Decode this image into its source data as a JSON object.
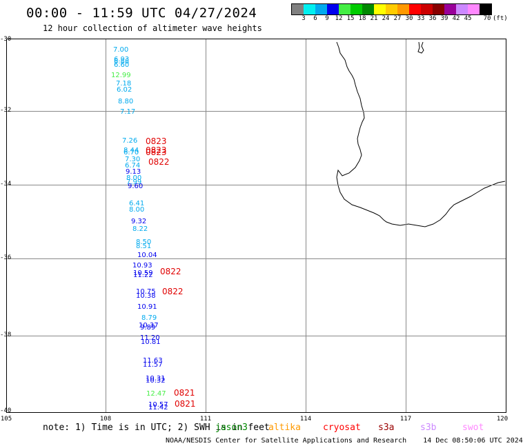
{
  "title": "00:00 - 11:59 UTC 04/27/2024",
  "subtitle": "12 hour collection of altimeter wave heights",
  "scale": {
    "colors": [
      "#808080",
      "#00f0f0",
      "#00aaee",
      "#0000ee",
      "#44ee44",
      "#00cc00",
      "#008800",
      "#ffff00",
      "#ffcc00",
      "#ff9900",
      "#ff0000",
      "#cc0000",
      "#880000",
      "#990099",
      "#cc88ff",
      "#ff88ff",
      "#000000"
    ],
    "ticks": [
      "3",
      "6",
      "9",
      "12",
      "15",
      "18",
      "21",
      "24",
      "27",
      "30",
      "33",
      "36",
      "39",
      "42",
      "45",
      "70"
    ],
    "unit": "(ft)"
  },
  "axes": {
    "lat_labels": [
      "-30",
      "-32",
      "-34",
      "-36",
      "-38",
      "-40"
    ],
    "lon_labels": [
      "105",
      "108",
      "111",
      "114",
      "117",
      "120"
    ]
  },
  "observations": [
    {
      "v": "7.00",
      "c": "#00aaee"
    },
    {
      "v": "6.93",
      "c": "#00aaee"
    },
    {
      "v": "6.88",
      "c": "#00aaee"
    },
    {
      "v": "6.60",
      "c": "#00aaee"
    },
    {
      "v": "12.99",
      "c": "#44ee44"
    },
    {
      "v": "7.18",
      "c": "#00aaee"
    },
    {
      "v": "6.02",
      "c": "#00aaee"
    },
    {
      "v": "8.80",
      "c": "#00aaee"
    },
    {
      "v": "7.17",
      "c": "#00aaee"
    },
    {
      "v": "7.26",
      "c": "#00aaee"
    },
    {
      "v": "8.44",
      "c": "#00aaee"
    },
    {
      "v": "6.70",
      "c": "#00aaee"
    },
    {
      "v": "7.30",
      "c": "#00aaee"
    },
    {
      "v": "6.74",
      "c": "#00aaee"
    },
    {
      "v": "9.13",
      "c": "#0000ee"
    },
    {
      "v": "8.00",
      "c": "#00aaee"
    },
    {
      "v": "7.99",
      "c": "#00aaee"
    },
    {
      "v": "9.60",
      "c": "#0000ee"
    },
    {
      "v": "6.41",
      "c": "#00aaee"
    },
    {
      "v": "8.00",
      "c": "#00aaee"
    },
    {
      "v": "9.32",
      "c": "#0000ee"
    },
    {
      "v": "8.22",
      "c": "#00aaee"
    },
    {
      "v": "8.50",
      "c": "#00aaee"
    },
    {
      "v": "8.51",
      "c": "#00aaee"
    },
    {
      "v": "10.04",
      "c": "#0000ee"
    },
    {
      "v": "10.93",
      "c": "#0000ee"
    },
    {
      "v": "10.59",
      "c": "#0000ee"
    },
    {
      "v": "11.22",
      "c": "#0000ee"
    },
    {
      "v": "10.75",
      "c": "#0000ee"
    },
    {
      "v": "10.38",
      "c": "#0000ee"
    },
    {
      "v": "10.91",
      "c": "#0000ee"
    },
    {
      "v": "8.79",
      "c": "#00aaee"
    },
    {
      "v": "10.37",
      "c": "#0000ee"
    },
    {
      "v": "9.89",
      "c": "#0000ee"
    },
    {
      "v": "11.20",
      "c": "#0000ee"
    },
    {
      "v": "10.81",
      "c": "#0000ee"
    },
    {
      "v": "11.63",
      "c": "#0000ee"
    },
    {
      "v": "11.57",
      "c": "#0000ee"
    },
    {
      "v": "10.31",
      "c": "#0000ee"
    },
    {
      "v": "10.32",
      "c": "#0000ee"
    },
    {
      "v": "12.47",
      "c": "#44ee44"
    },
    {
      "v": "10.57",
      "c": "#0000ee"
    },
    {
      "v": "11.42",
      "c": "#0000ee"
    }
  ],
  "passes": [
    "0823",
    "0823",
    "0823",
    "0822",
    "0822",
    "0822",
    "0821",
    "0821"
  ],
  "note": "note: 1) Time is in UTC; 2) SWH is in feet",
  "legend": [
    {
      "label": "jason3",
      "color": "#008800"
    },
    {
      "label": "altika",
      "color": "#ff9900"
    },
    {
      "label": "cryosat",
      "color": "#ff0000"
    },
    {
      "label": "s3a",
      "color": "#990000"
    },
    {
      "label": "s3b",
      "color": "#cc88ff"
    },
    {
      "label": "swot",
      "color": "#ff88ff"
    }
  ],
  "credit": "NOAA/NESDIS Center for Satellite Applications and Research    14 Dec 08:50:06 UTC 2024"
}
